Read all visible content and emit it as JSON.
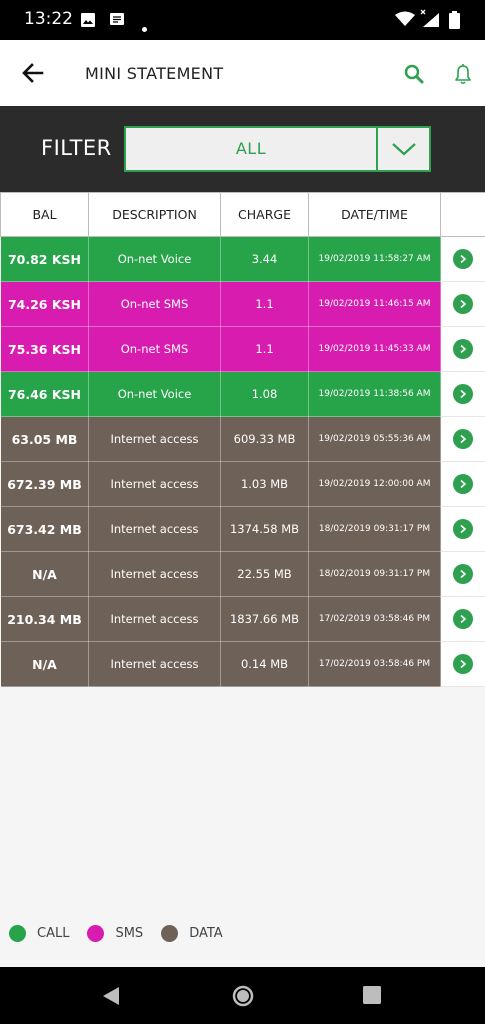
{
  "status_bar": {
    "time": "13:22",
    "icons": [
      "image-icon",
      "message-icon",
      "dot-icon",
      "wifi-icon",
      "signal-icon",
      "battery-icon"
    ]
  },
  "header": {
    "title": "MINI STATEMENT",
    "icons": [
      "back-arrow-icon",
      "search-icon",
      "bell-icon"
    ],
    "accent_color": "#2ea04f"
  },
  "filter": {
    "label": "FILTER",
    "selected": "ALL"
  },
  "table": {
    "columns": [
      "BAL",
      "DESCRIPTION",
      "CHARGE",
      "DATE/TIME"
    ],
    "rows": [
      {
        "bal": "70.82 KSH",
        "description": "On-net Voice",
        "charge": "3.44",
        "datetime": "19/02/2019 11:58:27 AM",
        "type": "call"
      },
      {
        "bal": "74.26 KSH",
        "description": "On-net SMS",
        "charge": "1.1",
        "datetime": "19/02/2019 11:46:15 AM",
        "type": "sms"
      },
      {
        "bal": "75.36 KSH",
        "description": "On-net SMS",
        "charge": "1.1",
        "datetime": "19/02/2019 11:45:33 AM",
        "type": "sms"
      },
      {
        "bal": "76.46 KSH",
        "description": "On-net Voice",
        "charge": "1.08",
        "datetime": "19/02/2019 11:38:56 AM",
        "type": "call"
      },
      {
        "bal": "63.05 MB",
        "description": "Internet access",
        "charge": "609.33 MB",
        "datetime": "19/02/2019 05:55:36 AM",
        "type": "data"
      },
      {
        "bal": "672.39 MB",
        "description": "Internet access",
        "charge": "1.03 MB",
        "datetime": "19/02/2019 12:00:00 AM",
        "type": "data"
      },
      {
        "bal": "673.42 MB",
        "description": "Internet access",
        "charge": "1374.58 MB",
        "datetime": "18/02/2019 09:31:17 PM",
        "type": "data"
      },
      {
        "bal": "N/A",
        "description": "Internet access",
        "charge": "22.55 MB",
        "datetime": "18/02/2019 09:31:17 PM",
        "type": "data"
      },
      {
        "bal": "210.34 MB",
        "description": "Internet access",
        "charge": "1837.66 MB",
        "datetime": "17/02/2019 03:58:46 PM",
        "type": "data"
      },
      {
        "bal": "N/A",
        "description": "Internet access",
        "charge": "0.14 MB",
        "datetime": "17/02/2019 03:58:46 PM",
        "type": "data"
      }
    ]
  },
  "type_colors": {
    "call": "#27a34a",
    "sms": "#d81cb0",
    "data": "#6d6158"
  },
  "legend": [
    {
      "label": "CALL",
      "type": "call"
    },
    {
      "label": "SMS",
      "type": "sms"
    },
    {
      "label": "DATA",
      "type": "data"
    }
  ],
  "nav_bar": {
    "icons": [
      "nav-back-icon",
      "nav-home-icon",
      "nav-recents-icon"
    ]
  }
}
